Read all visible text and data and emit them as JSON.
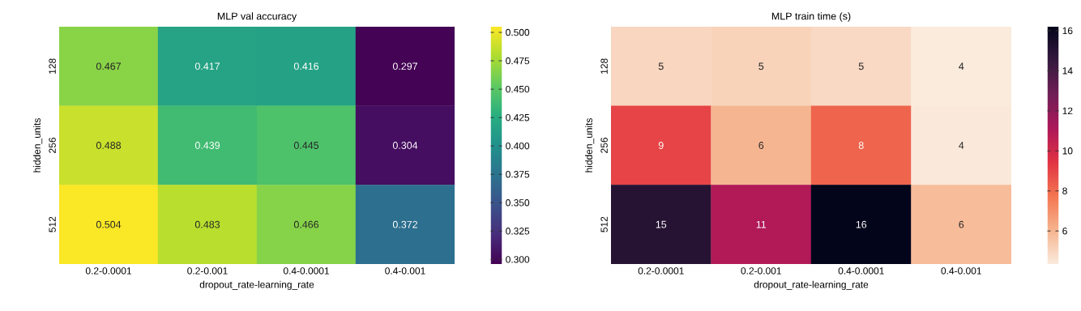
{
  "chart_data": [
    {
      "type": "heatmap",
      "title": "MLP val accuracy",
      "xlabel": "dropout_rate-learning_rate",
      "ylabel": "hidden_units",
      "categories": [
        "0.2-0.0001",
        "0.2-0.001",
        "0.4-0.0001",
        "0.4-0.001"
      ],
      "y_categories": [
        "128",
        "256",
        "512"
      ],
      "cells": [
        [
          0.467,
          0.417,
          0.416,
          0.297
        ],
        [
          0.488,
          0.439,
          0.445,
          0.304
        ],
        [
          0.504,
          0.483,
          0.466,
          0.372
        ]
      ],
      "data_labels": true,
      "clim": [
        0.296,
        0.505
      ],
      "cticks": [
        {
          "value": 0.3,
          "label": "0.300"
        },
        {
          "value": 0.325,
          "label": "0.325"
        },
        {
          "value": 0.35,
          "label": "0.350"
        },
        {
          "value": 0.375,
          "label": "0.375"
        },
        {
          "value": 0.4,
          "label": "0.400"
        },
        {
          "value": 0.425,
          "label": "0.425"
        },
        {
          "value": 0.45,
          "label": "0.450"
        },
        {
          "value": 0.475,
          "label": "0.475"
        },
        {
          "value": 0.5,
          "label": "0.500"
        }
      ]
    },
    {
      "type": "heatmap",
      "title": "MLP train time (s)",
      "xlabel": "dropout_rate-learning_rate",
      "ylabel": "hidden_units",
      "categories": [
        "0.2-0.0001",
        "0.2-0.001",
        "0.4-0.0001",
        "0.4-0.001"
      ],
      "y_categories": [
        "128",
        "256",
        "512"
      ],
      "cells": [
        [
          5.0,
          5.1,
          4.9,
          4.35
        ],
        [
          9.0,
          6.0,
          8.2,
          4.4
        ],
        [
          15.0,
          11.0,
          16.2,
          5.8
        ]
      ],
      "cell_labels": [
        [
          "5",
          "5",
          "5",
          "4"
        ],
        [
          "9",
          "6",
          "8",
          "4"
        ],
        [
          "15",
          "11",
          "16",
          "6"
        ]
      ],
      "clim": [
        4.35,
        16.2
      ],
      "cticks": [
        6,
        8,
        10,
        12,
        14,
        16
      ]
    }
  ]
}
